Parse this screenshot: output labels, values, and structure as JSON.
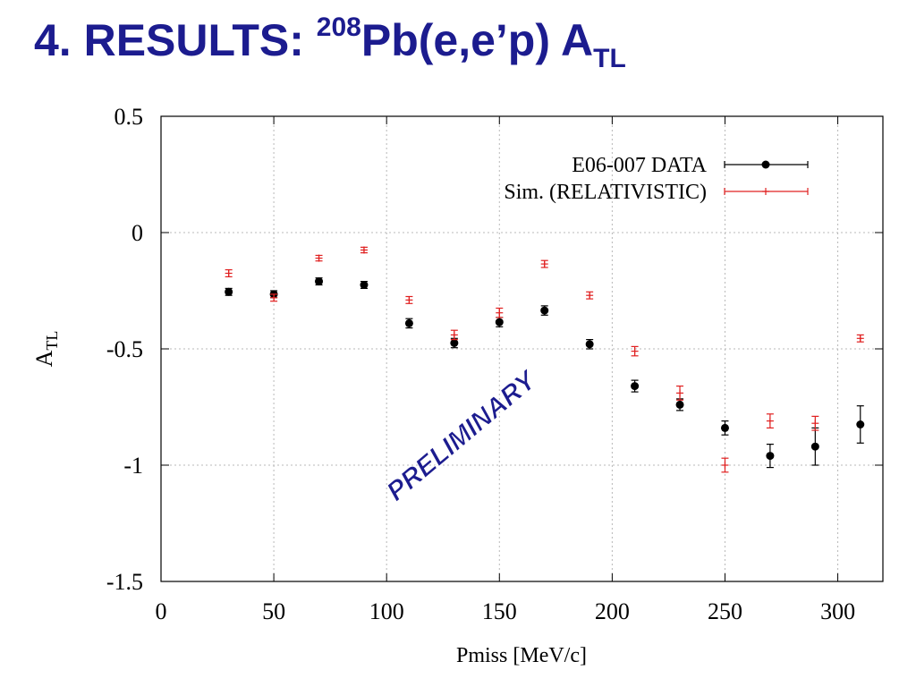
{
  "slide": {
    "title_prefix": "4. RESULTS: ",
    "title_mass": "208",
    "title_reaction": "Pb(e,e’p) A",
    "title_subscript": "TL"
  },
  "watermark": "PRELIMINARY",
  "colors": {
    "title": "#1c1c8f",
    "data": "#000000",
    "sim": "#e02020",
    "watermark": "#1c1c8f"
  },
  "chart_data": {
    "type": "scatter",
    "xlabel": "Pmiss [MeV/c]",
    "ylabel_main": "A",
    "ylabel_sub": "TL",
    "xlim": [
      0,
      320
    ],
    "ylim": [
      -1.5,
      0.5
    ],
    "xticks": [
      0,
      50,
      100,
      150,
      200,
      250,
      300
    ],
    "xtick_labels": [
      "0",
      "50",
      "100",
      "150",
      "200",
      "250",
      "300"
    ],
    "yticks": [
      -1.5,
      -1,
      -0.5,
      0,
      0.5
    ],
    "ytick_labels": [
      "-1.5",
      "-1",
      "-0.5",
      "0",
      "0.5"
    ],
    "grid": true,
    "legend_position": "top-right",
    "series": [
      {
        "name": "E06-007 DATA",
        "marker": "circle",
        "x": [
          30,
          50,
          70,
          90,
          110,
          130,
          150,
          170,
          190,
          210,
          230,
          250,
          270,
          290,
          310
        ],
        "y": [
          -0.255,
          -0.265,
          -0.21,
          -0.225,
          -0.39,
          -0.475,
          -0.385,
          -0.335,
          -0.48,
          -0.66,
          -0.74,
          -0.84,
          -0.96,
          -0.92,
          -0.825
        ],
        "err": [
          0.015,
          0.015,
          0.015,
          0.015,
          0.02,
          0.02,
          0.02,
          0.02,
          0.02,
          0.025,
          0.025,
          0.03,
          0.05,
          0.08,
          0.08
        ]
      },
      {
        "name": "Sim. (RELATIVISTIC)",
        "marker": "plus",
        "x": [
          30,
          50,
          70,
          90,
          110,
          130,
          150,
          170,
          190,
          210,
          230,
          250,
          270,
          290,
          310
        ],
        "y": [
          -0.175,
          -0.28,
          -0.11,
          -0.075,
          -0.29,
          -0.44,
          -0.345,
          -0.135,
          -0.27,
          -0.51,
          -0.69,
          -1.0,
          -0.81,
          -0.82,
          -0.455
        ],
        "err": [
          0.015,
          0.015,
          0.012,
          0.012,
          0.015,
          0.02,
          0.02,
          0.015,
          0.015,
          0.02,
          0.03,
          0.03,
          0.03,
          0.03,
          0.015
        ]
      }
    ]
  }
}
